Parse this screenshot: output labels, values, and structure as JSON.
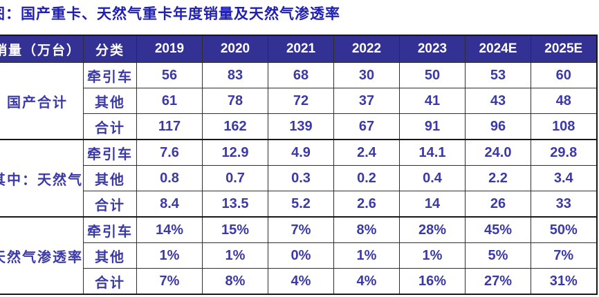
{
  "title": "图：国产重卡、天然气重卡年度销量及天然气渗透率",
  "colors": {
    "header_background": "#333193",
    "header_text": "#ffffff",
    "title_text": "#1f1fb4",
    "value_text": "#3b39a6",
    "border": "#161616"
  },
  "table": {
    "col1_header": "销量（万台）",
    "col2_header": "分类",
    "year_headers": [
      "2019",
      "2020",
      "2021",
      "2022",
      "2023",
      "2024E",
      "2025E"
    ],
    "groups": [
      {
        "label": "国产合计",
        "rows": [
          {
            "category": "牵引车",
            "values": [
              "56",
              "83",
              "68",
              "30",
              "50",
              "53",
              "60"
            ]
          },
          {
            "category": "其他",
            "values": [
              "61",
              "78",
              "72",
              "37",
              "41",
              "43",
              "48"
            ]
          },
          {
            "category": "合计",
            "values": [
              "117",
              "162",
              "139",
              "67",
              "91",
              "96",
              "108"
            ]
          }
        ]
      },
      {
        "label": "其中：天然气",
        "rows": [
          {
            "category": "牵引车",
            "values": [
              "7.6",
              "12.9",
              "4.9",
              "2.4",
              "14.1",
              "24.0",
              "29.8"
            ]
          },
          {
            "category": "其他",
            "values": [
              "0.8",
              "0.7",
              "0.3",
              "0.2",
              "0.4",
              "2.2",
              "3.4"
            ]
          },
          {
            "category": "合计",
            "values": [
              "8.4",
              "13.5",
              "5.2",
              "2.6",
              "14",
              "26",
              "33"
            ]
          }
        ]
      },
      {
        "label": "天然气渗透率",
        "rows": [
          {
            "category": "牵引车",
            "values": [
              "14%",
              "15%",
              "7%",
              "8%",
              "28%",
              "45%",
              "50%"
            ]
          },
          {
            "category": "其他",
            "values": [
              "1%",
              "1%",
              "0%",
              "1%",
              "1%",
              "5%",
              "7%"
            ]
          },
          {
            "category": "合计",
            "values": [
              "7%",
              "8%",
              "4%",
              "4%",
              "16%",
              "27%",
              "31%"
            ]
          }
        ]
      }
    ]
  }
}
